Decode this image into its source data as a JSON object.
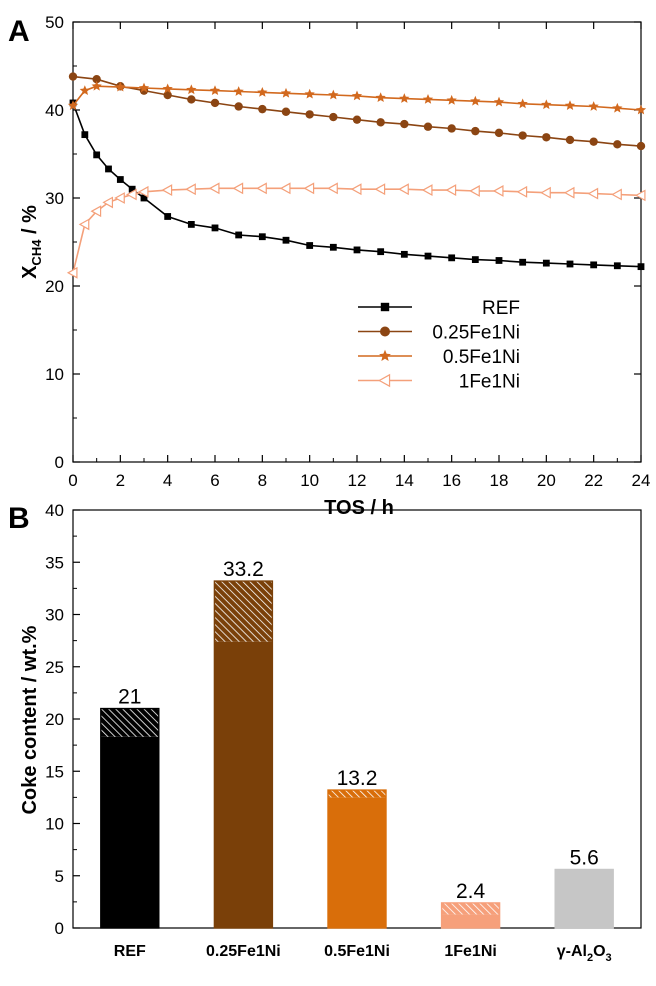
{
  "chart_data": [
    {
      "panel": "A",
      "type": "line",
      "xlabel": "TOS /  h",
      "ylabel_main": "X",
      "ylabel_sub": "CH4",
      "ylabel_tail": " / %",
      "xlim": [
        0,
        24
      ],
      "ylim": [
        0,
        50
      ],
      "xticks": [
        0,
        2,
        4,
        6,
        8,
        10,
        12,
        14,
        16,
        18,
        20,
        22,
        24
      ],
      "yticks": [
        0,
        10,
        20,
        30,
        40,
        50
      ],
      "legend_position": "lower-right",
      "series": [
        {
          "name": "REF",
          "color": "#000000",
          "marker": "square",
          "x": [
            0,
            0.5,
            1,
            1.5,
            2,
            2.5,
            3,
            4,
            5,
            6,
            7,
            8,
            9,
            10,
            11,
            12,
            13,
            14,
            15,
            16,
            17,
            18,
            19,
            20,
            21,
            22,
            23,
            24
          ],
          "y": [
            40.8,
            37.2,
            34.9,
            33.3,
            32.1,
            31.0,
            30.0,
            27.9,
            27.0,
            26.6,
            25.8,
            25.6,
            25.2,
            24.6,
            24.4,
            24.1,
            23.9,
            23.6,
            23.4,
            23.2,
            23.0,
            22.9,
            22.7,
            22.6,
            22.5,
            22.4,
            22.3,
            22.2
          ]
        },
        {
          "name": "0.25Fe1Ni",
          "color": "#8b4513",
          "marker": "circle",
          "x": [
            0,
            1,
            2,
            3,
            4,
            5,
            6,
            7,
            8,
            9,
            10,
            11,
            12,
            13,
            14,
            15,
            16,
            17,
            18,
            19,
            20,
            21,
            22,
            23,
            24
          ],
          "y": [
            43.8,
            43.5,
            42.7,
            42.2,
            41.7,
            41.2,
            40.8,
            40.4,
            40.1,
            39.8,
            39.5,
            39.2,
            38.9,
            38.6,
            38.4,
            38.1,
            37.9,
            37.6,
            37.4,
            37.1,
            36.9,
            36.6,
            36.4,
            36.1,
            35.9
          ]
        },
        {
          "name": "0.5Fe1Ni",
          "color": "#d2691e",
          "marker": "star",
          "x": [
            0,
            0.5,
            1,
            2,
            3,
            4,
            5,
            6,
            7,
            8,
            9,
            10,
            11,
            12,
            13,
            14,
            15,
            16,
            17,
            18,
            19,
            20,
            21,
            22,
            23,
            24
          ],
          "y": [
            40.5,
            42.2,
            42.7,
            42.6,
            42.5,
            42.4,
            42.3,
            42.2,
            42.1,
            42.0,
            41.9,
            41.8,
            41.7,
            41.6,
            41.4,
            41.3,
            41.2,
            41.1,
            41.0,
            40.9,
            40.7,
            40.6,
            40.5,
            40.4,
            40.2,
            40.0
          ]
        },
        {
          "name": "1Fe1Ni",
          "color": "#f4a07a",
          "marker": "triangle-left",
          "x": [
            0,
            0.5,
            1,
            1.5,
            2,
            2.5,
            3,
            4,
            5,
            6,
            7,
            8,
            9,
            10,
            11,
            12,
            13,
            14,
            15,
            16,
            17,
            18,
            19,
            20,
            21,
            22,
            23,
            24
          ],
          "y": [
            21.5,
            27.0,
            28.5,
            29.5,
            30.0,
            30.4,
            30.7,
            30.9,
            31.0,
            31.1,
            31.1,
            31.1,
            31.1,
            31.1,
            31.1,
            31.0,
            31.0,
            31.0,
            30.9,
            30.9,
            30.8,
            30.8,
            30.7,
            30.6,
            30.6,
            30.5,
            30.4,
            30.3
          ]
        }
      ]
    },
    {
      "panel": "B",
      "type": "bar",
      "ylabel": "Coke content / wt.%",
      "ylim": [
        0,
        40
      ],
      "yticks": [
        0,
        5,
        10,
        15,
        20,
        25,
        30,
        35,
        40
      ],
      "categories": [
        "REF",
        "0.25Fe1Ni",
        "0.5Fe1Ni",
        "1Fe1Ni",
        "γ-Al2O3"
      ],
      "category_main": [
        "REF",
        "0.25Fe1Ni",
        "0.5Fe1Ni",
        "1Fe1Ni",
        "γ-Al"
      ],
      "category_sub1": [
        "",
        "",
        "",
        "",
        "2"
      ],
      "category_mid": [
        "",
        "",
        "",
        "",
        "O"
      ],
      "category_sub2": [
        "",
        "",
        "",
        "",
        "3"
      ],
      "values": [
        21,
        33.2,
        13.2,
        2.4,
        5.6
      ],
      "value_labels": [
        "21",
        "33.2",
        "13.2",
        "2.4",
        "5.6"
      ],
      "solid_part": [
        18.3,
        27.4,
        12.5,
        1.3,
        5.6
      ],
      "colors": [
        "#000000",
        "#7a4009",
        "#d96e0a",
        "#f6a07b",
        "#c6c6c6"
      ]
    }
  ],
  "figure": {
    "panel_a_label": "A",
    "panel_b_label": "B"
  }
}
